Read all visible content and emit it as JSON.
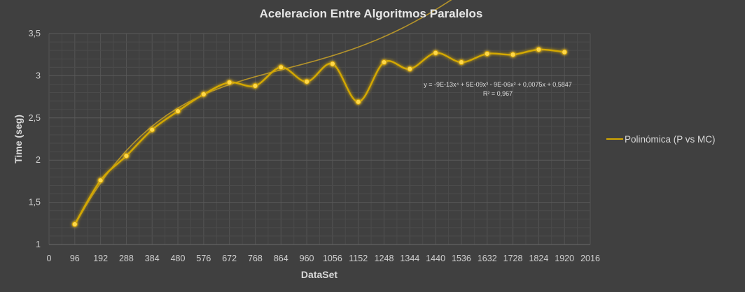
{
  "chart_data": {
    "type": "line",
    "title": "Aceleracion Entre Algoritmos Paralelos",
    "xlabel": "DataSet",
    "ylabel": "Time (seg)",
    "xlim": [
      0,
      2016
    ],
    "ylim": [
      1,
      3.5
    ],
    "x_ticks": [
      0,
      96,
      192,
      288,
      384,
      480,
      576,
      672,
      768,
      864,
      960,
      1056,
      1152,
      1248,
      1344,
      1440,
      1536,
      1632,
      1728,
      1824,
      1920,
      2016
    ],
    "y_ticks": [
      1,
      1.5,
      2,
      2.5,
      3,
      3.5
    ],
    "y_tick_labels": [
      "1",
      "1,5",
      "2",
      "2,5",
      "3",
      "3,5"
    ],
    "grid": true,
    "legend_position": "right",
    "series": [
      {
        "name": "Polinómica (P vs MC)",
        "color": "#d4a800",
        "smooth": true,
        "x": [
          96,
          192,
          288,
          384,
          480,
          576,
          672,
          768,
          864,
          960,
          1056,
          1152,
          1248,
          1344,
          1440,
          1536,
          1632,
          1728,
          1824,
          1920
        ],
        "values": [
          1.24,
          1.76,
          2.05,
          2.36,
          2.58,
          2.78,
          2.92,
          2.88,
          3.1,
          2.93,
          3.14,
          2.69,
          3.16,
          3.08,
          3.27,
          3.16,
          3.26,
          3.25,
          3.31,
          3.28
        ]
      }
    ],
    "trendline": {
      "type": "polynomial",
      "color": "#c9a227",
      "equation": "y = -9E-13x⁴ + 5E-09x³ - 9E-06x² + 0,0075x + 0,5847",
      "r_squared": "R² = 0,967",
      "coefficients": [
        0.5847,
        0.0075,
        -9e-06,
        5e-09,
        -9e-13
      ]
    }
  }
}
